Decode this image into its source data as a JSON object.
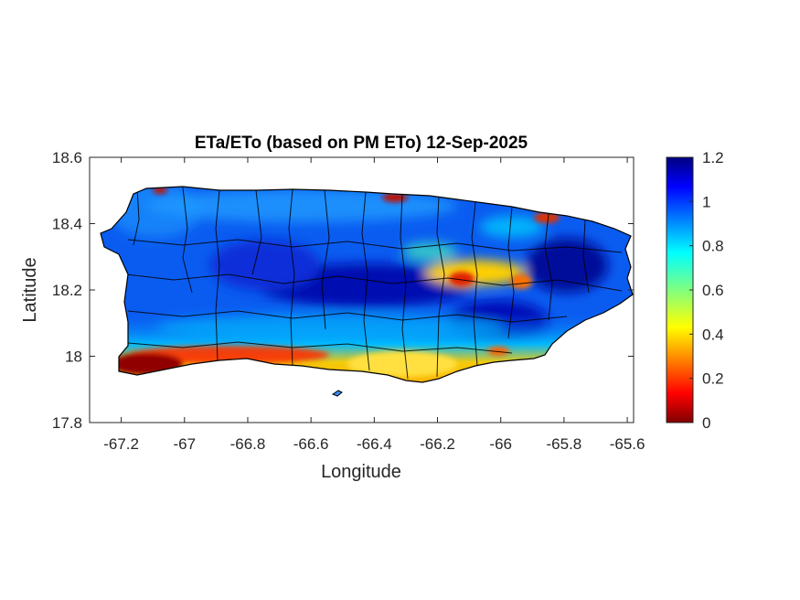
{
  "chart_data": {
    "type": "heatmap",
    "title": "ETa/ETo (based on PM ETo) 12-Sep-2025",
    "xlabel": "Longitude",
    "ylabel": "Latitude",
    "xlim": [
      -67.3,
      -65.58
    ],
    "ylim": [
      17.8,
      18.6
    ],
    "x_ticks": [
      -67.2,
      -67,
      -66.8,
      -66.6,
      -66.4,
      -66.2,
      -66,
      -65.8,
      -65.6
    ],
    "x_tick_labels": [
      "-67.2",
      "-67",
      "-66.8",
      "-66.6",
      "-66.4",
      "-66.2",
      "-66",
      "-65.8",
      "-65.6"
    ],
    "y_ticks": [
      17.8,
      18,
      18.2,
      18.4,
      18.6
    ],
    "y_tick_labels": [
      "17.8",
      "18",
      "18.2",
      "18.4",
      "18.6"
    ],
    "colorbar": {
      "colormap": "jet",
      "range": [
        0,
        1.2
      ],
      "ticks": [
        0,
        0.2,
        0.4,
        0.6,
        0.8,
        1,
        1.2
      ],
      "tick_labels": [
        "0",
        "0.2",
        "0.4",
        "0.6",
        "0.8",
        "1",
        "1.2"
      ]
    },
    "grid": false,
    "colors": {
      "very_low": "#800000",
      "low": "#ff3000",
      "mid_low": "#ffd000",
      "mid": "#40ffc0",
      "high": "#00a0ff",
      "very_high": "#0010c0",
      "boundary": "#000000"
    }
  }
}
